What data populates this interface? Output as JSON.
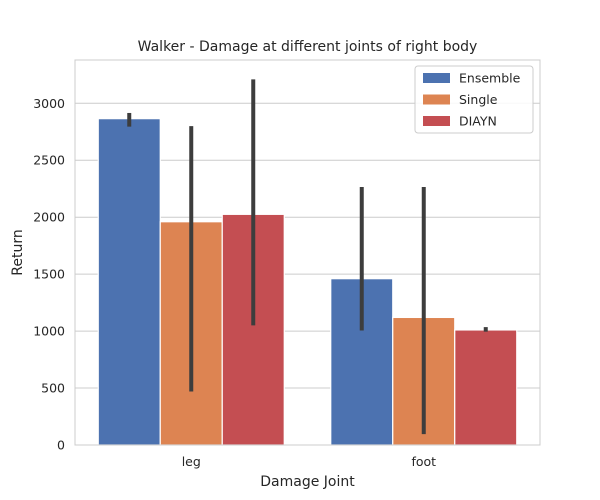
{
  "chart_data": {
    "type": "bar",
    "title": "Walker - Damage at different joints of right body",
    "xlabel": "Damage Joint",
    "ylabel": "Return",
    "categories": [
      "leg",
      "foot"
    ],
    "ylim": [
      0,
      3380
    ],
    "yticks": [
      0,
      500,
      1000,
      1500,
      2000,
      2500,
      3000
    ],
    "grid": "horizontal",
    "legend_position": "top-right",
    "series": [
      {
        "name": "Ensemble",
        "color": "#4c72b0",
        "values": [
          2865,
          1460
        ],
        "ci_low": [
          2795,
          1005
        ],
        "ci_high": [
          2915,
          2265
        ]
      },
      {
        "name": "Single",
        "color": "#dd8452",
        "values": [
          1960,
          1120
        ],
        "ci_low": [
          470,
          95
        ],
        "ci_high": [
          2800,
          2265
        ]
      },
      {
        "name": "DIAYN",
        "color": "#c44e52",
        "values": [
          2025,
          1010
        ],
        "ci_low": [
          1050,
          995
        ],
        "ci_high": [
          3210,
          1035
        ]
      }
    ]
  }
}
